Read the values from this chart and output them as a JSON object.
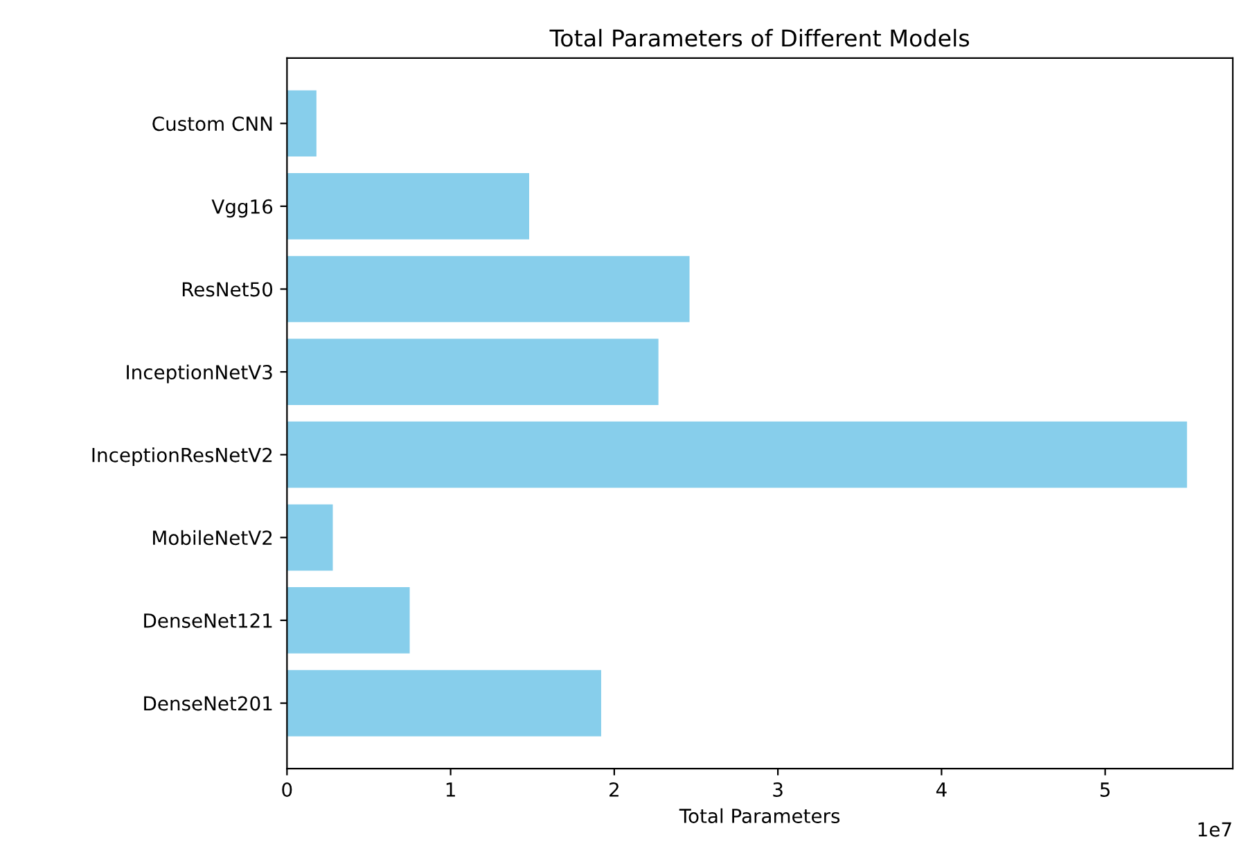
{
  "chart_data": {
    "type": "bar",
    "orientation": "horizontal",
    "title": "Total Parameters of Different Models",
    "xlabel": "Total Parameters",
    "categories": [
      "Custom CNN",
      "Vgg16",
      "ResNet50",
      "InceptionNetV3",
      "InceptionResNetV2",
      "MobileNetV2",
      "DenseNet121",
      "DenseNet201"
    ],
    "values": [
      0.18,
      1.48,
      2.46,
      2.27,
      5.5,
      0.28,
      0.75,
      1.92
    ],
    "color": "#87ceeb",
    "xlim": [
      0,
      5.78
    ],
    "xticks": [
      0,
      1,
      2,
      3,
      4,
      5
    ],
    "annotations": [
      "1e7"
    ]
  }
}
